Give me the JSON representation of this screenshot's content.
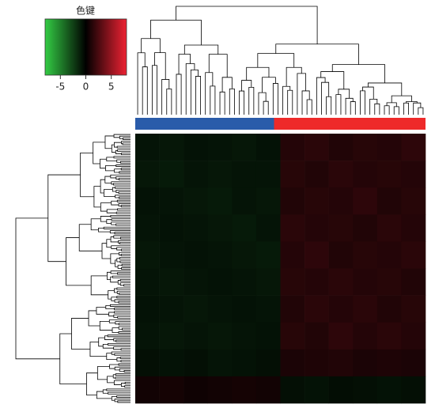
{
  "chart_data": {
    "type": "heatmap",
    "colorbar_title": "色键",
    "zlim": [
      -8,
      8
    ],
    "zticks": [
      -5,
      0,
      5
    ],
    "colors": [
      "#33cc44",
      "#000000",
      "#ee2233"
    ],
    "group_colors": [
      "#2a5caa",
      "#ee2a2a"
    ],
    "values": [
      [
        -0.8,
        -0.9,
        -0.7,
        -0.8,
        -0.9,
        -0.7,
        1.2,
        1.4,
        1.1,
        1.3,
        1.2,
        1.5
      ],
      [
        -0.9,
        -1.0,
        -0.8,
        -0.9,
        -0.8,
        -0.8,
        1.3,
        1.1,
        1.4,
        1.2,
        1.3,
        1.2
      ],
      [
        -0.7,
        -0.8,
        -0.9,
        -1.0,
        -0.8,
        -0.9,
        1.1,
        1.3,
        1.2,
        1.5,
        1.1,
        1.3
      ],
      [
        -0.8,
        -0.7,
        -0.8,
        -0.9,
        -1.0,
        -0.8,
        1.4,
        1.2,
        1.3,
        1.1,
        1.4,
        1.2
      ],
      [
        -0.9,
        -0.8,
        -0.7,
        -0.8,
        -0.9,
        -1.0,
        1.2,
        1.5,
        1.1,
        1.3,
        1.2,
        1.4
      ],
      [
        -0.8,
        -0.9,
        -0.8,
        -0.7,
        -0.8,
        -0.9,
        1.3,
        1.2,
        1.4,
        1.2,
        1.3,
        1.1
      ],
      [
        -0.7,
        -0.8,
        -0.9,
        -0.8,
        -0.7,
        -0.8,
        1.1,
        1.4,
        1.2,
        1.4,
        1.1,
        1.3
      ],
      [
        -0.8,
        -0.9,
        -0.8,
        -0.9,
        -0.8,
        -0.7,
        1.3,
        1.1,
        1.5,
        1.2,
        1.4,
        1.2
      ],
      [
        -0.6,
        -0.7,
        -0.6,
        -0.8,
        -0.7,
        -0.6,
        0.9,
        1.0,
        1.1,
        0.9,
        1.0,
        0.9
      ],
      [
        0.6,
        0.7,
        0.5,
        0.6,
        0.7,
        0.6,
        -0.6,
        -0.7,
        -0.5,
        -0.6,
        -0.7,
        -0.6
      ]
    ]
  }
}
